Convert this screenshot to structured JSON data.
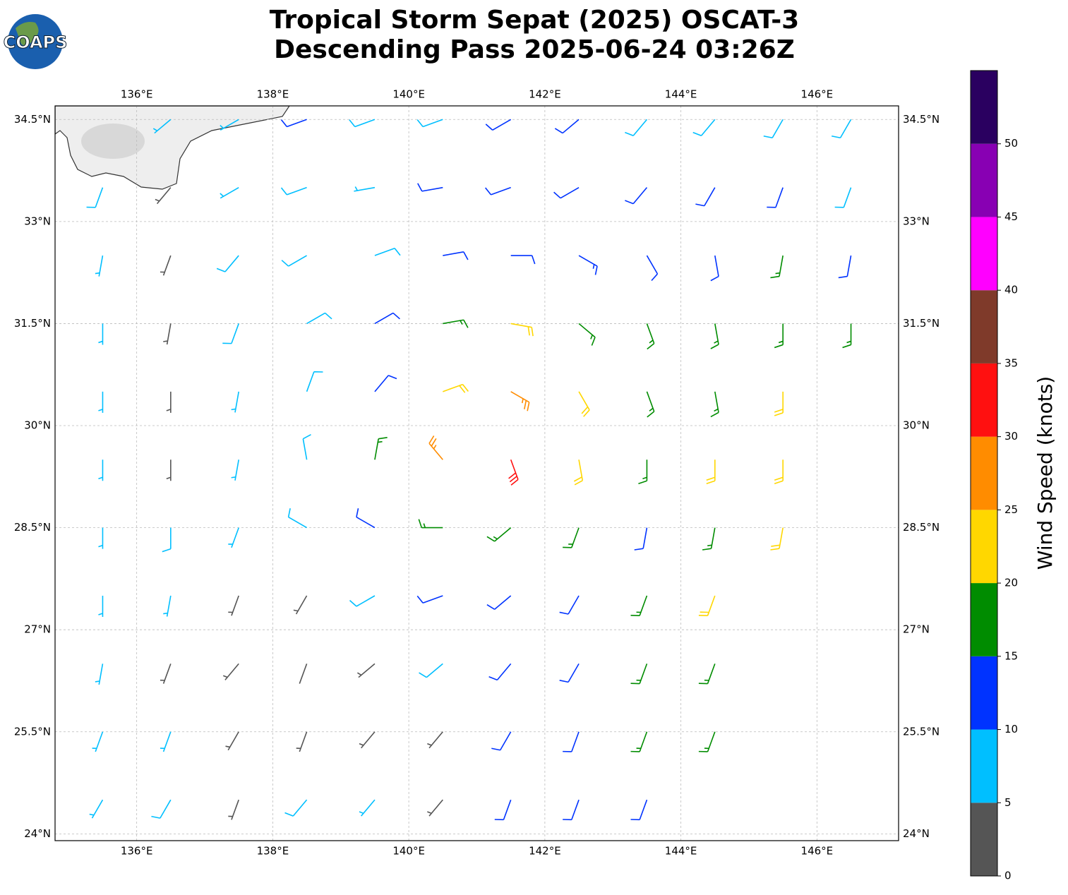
{
  "chart_data": {
    "type": "barbs",
    "logo_text": "COAPS",
    "title": "Tropical Storm Sepat (2025) OSCAT-3",
    "subtitle": "Descending Pass 2025-06-24 03:26Z",
    "xlim": [
      134.8,
      147.2
    ],
    "ylim": [
      23.9,
      34.7
    ],
    "xticks": [
      {
        "value": 136,
        "label": "136°E"
      },
      {
        "value": 138,
        "label": "138°E"
      },
      {
        "value": 140,
        "label": "140°E"
      },
      {
        "value": 142,
        "label": "142°E"
      },
      {
        "value": 144,
        "label": "144°E"
      },
      {
        "value": 146,
        "label": "146°E"
      }
    ],
    "yticks": [
      {
        "value": 24,
        "label": "24°N"
      },
      {
        "value": 25.5,
        "label": "25.5°N"
      },
      {
        "value": 27,
        "label": "27°N"
      },
      {
        "value": 28.5,
        "label": "28.5°N"
      },
      {
        "value": 30,
        "label": "30°N"
      },
      {
        "value": 31.5,
        "label": "31.5°N"
      },
      {
        "value": 33,
        "label": "33°N"
      },
      {
        "value": 34.5,
        "label": "34.5°N"
      }
    ],
    "grid": true,
    "barbs": {
      "lon": [
        135.5,
        136.5,
        137.5,
        138.5,
        139.5,
        140.5,
        141.5,
        142.5,
        143.5,
        144.5,
        145.5,
        146.5
      ],
      "lat": [
        34.5,
        33.5,
        32.5,
        31.5,
        30.5,
        29.5,
        28.5,
        27.5,
        26.5,
        25.5,
        24.5
      ],
      "speed": [
        [
          null,
          7,
          7,
          12,
          8,
          8,
          12,
          12,
          8,
          8,
          8,
          8
        ],
        [
          8,
          4,
          7,
          8,
          7,
          12,
          12,
          12,
          12,
          12,
          12,
          8
        ],
        [
          7,
          4,
          8,
          8,
          9,
          12,
          12,
          14,
          12,
          12,
          17,
          12
        ],
        [
          7,
          3,
          8,
          8,
          12,
          17,
          22,
          17,
          17,
          17,
          17,
          17
        ],
        [
          7,
          3,
          7,
          8,
          12,
          22,
          27,
          22,
          17,
          17,
          22,
          null
        ],
        [
          7,
          4,
          7,
          8,
          17,
          27,
          32,
          22,
          17,
          22,
          22,
          null
        ],
        [
          7,
          8,
          7,
          8,
          12,
          17,
          17,
          17,
          12,
          17,
          22,
          null
        ],
        [
          7,
          7,
          4,
          3,
          8,
          12,
          12,
          12,
          17,
          22,
          null,
          null
        ],
        [
          7,
          4,
          3,
          2,
          3,
          8,
          12,
          12,
          17,
          17,
          null,
          null
        ],
        [
          7,
          7,
          4,
          3,
          4,
          4,
          12,
          12,
          17,
          17,
          null,
          null
        ],
        [
          7,
          8,
          4,
          8,
          7,
          4,
          12,
          12,
          12,
          null,
          null,
          null
        ]
      ],
      "direction": [
        [
          null,
          230,
          240,
          250,
          250,
          250,
          240,
          230,
          220,
          220,
          210,
          210
        ],
        [
          200,
          220,
          240,
          250,
          260,
          260,
          250,
          240,
          220,
          210,
          200,
          200
        ],
        [
          190,
          200,
          220,
          240,
          70,
          80,
          90,
          120,
          150,
          170,
          190,
          190
        ],
        [
          180,
          190,
          200,
          60,
          60,
          80,
          100,
          130,
          160,
          170,
          180,
          180
        ],
        [
          180,
          180,
          190,
          20,
          40,
          70,
          120,
          150,
          160,
          170,
          180,
          null
        ],
        [
          180,
          180,
          190,
          350,
          10,
          320,
          160,
          170,
          180,
          180,
          180,
          null
        ],
        [
          180,
          180,
          200,
          300,
          300,
          270,
          230,
          200,
          190,
          190,
          190,
          null
        ],
        [
          180,
          190,
          200,
          210,
          240,
          250,
          230,
          210,
          200,
          200,
          null,
          null
        ],
        [
          190,
          200,
          220,
          200,
          230,
          230,
          220,
          210,
          200,
          200,
          null,
          null
        ],
        [
          200,
          200,
          210,
          200,
          220,
          220,
          210,
          200,
          200,
          200,
          null,
          null
        ],
        [
          210,
          210,
          200,
          220,
          220,
          220,
          200,
          200,
          200,
          null,
          null,
          null
        ]
      ]
    },
    "colorbar": {
      "label": "Wind Speed (knots)",
      "clim": [
        0,
        55
      ],
      "ticks": [
        0,
        5,
        10,
        15,
        20,
        25,
        30,
        35,
        40,
        45,
        50
      ],
      "colors": [
        "#555555",
        "#00bfff",
        "#0033ff",
        "#008c00",
        "#ffd700",
        "#ff8c00",
        "#ff1010",
        "#7f3a2a",
        "#ff00ff",
        "#8800b3",
        "#2a0060"
      ]
    }
  }
}
